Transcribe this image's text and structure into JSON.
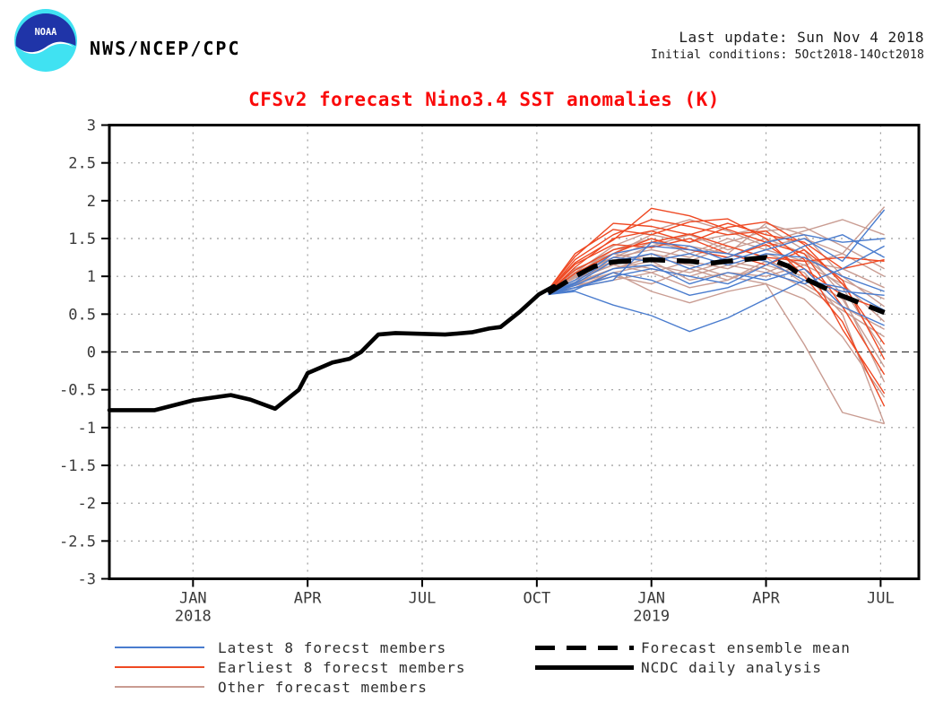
{
  "header": {
    "logo_text": "NOAA",
    "agency": "NWS/NCEP/CPC",
    "last_update": "Last update: Sun Nov 4 2018",
    "initial_conditions": "Initial conditions: 5Oct2018-14Oct2018"
  },
  "chart_data": {
    "type": "line",
    "title": "CFSv2 forecast Nino3.4 SST anomalies (K)",
    "title_color": "#fa0a0a",
    "ylabel": "",
    "xlabel": "",
    "ylim": [
      -3,
      3
    ],
    "ytick_step": 0.5,
    "ylabels": [
      "3",
      "2.5",
      "2",
      "1.5",
      "1",
      "0.5",
      "0",
      "-0.5",
      "-1",
      "-1.5",
      "-2",
      "-2.5",
      "-3"
    ],
    "x_months_rel_jan2018": [
      -2.19,
      19.0
    ],
    "xticks": [
      {
        "t": 0,
        "label": "JAN",
        "year": "2018"
      },
      {
        "t": 3,
        "label": "APR",
        "year": ""
      },
      {
        "t": 6,
        "label": "JUL",
        "year": ""
      },
      {
        "t": 9,
        "label": "OCT",
        "year": ""
      },
      {
        "t": 12,
        "label": "JAN",
        "year": "2019"
      },
      {
        "t": 15,
        "label": "APR",
        "year": ""
      },
      {
        "t": 18,
        "label": "JUL",
        "year": ""
      }
    ],
    "grid": "dotted every 0.5 K and every 3 months",
    "zero_line": true,
    "observed": {
      "name": "NCDC daily analysis",
      "color": "#000000",
      "points": [
        [
          -2.19,
          -0.77
        ],
        [
          -1.0,
          -0.77
        ],
        [
          0.0,
          -0.64
        ],
        [
          0.99,
          -0.57
        ],
        [
          1.5,
          -0.63
        ],
        [
          2.15,
          -0.75
        ],
        [
          2.77,
          -0.5
        ],
        [
          3.0,
          -0.28
        ],
        [
          3.65,
          -0.14
        ],
        [
          4.1,
          -0.09
        ],
        [
          4.4,
          0.0
        ],
        [
          4.85,
          0.23
        ],
        [
          5.3,
          0.25
        ],
        [
          6.6,
          0.23
        ],
        [
          7.3,
          0.26
        ],
        [
          7.75,
          0.31
        ],
        [
          8.05,
          0.33
        ],
        [
          8.55,
          0.53
        ],
        [
          9.05,
          0.76
        ],
        [
          9.45,
          0.87
        ]
      ]
    },
    "ensemble_mean": {
      "name": "Forecast ensemble mean",
      "color": "#000000",
      "dashed": true,
      "t": [
        9.3,
        10,
        10.5,
        11,
        12,
        13,
        13.5,
        14,
        15,
        15.6,
        16.1,
        16.9,
        17.5,
        18.1
      ],
      "values": [
        0.78,
        1.0,
        1.13,
        1.19,
        1.22,
        1.2,
        1.17,
        1.2,
        1.25,
        1.13,
        0.95,
        0.76,
        0.64,
        0.52
      ]
    },
    "members": {
      "t": [
        9.3,
        10,
        11,
        12,
        13,
        14,
        15,
        16,
        17,
        18.1
      ],
      "earliest": {
        "name": "Earliest 8 forecst members",
        "color": "#ef4923",
        "series": [
          [
            0.8,
            1.22,
            1.55,
            1.75,
            1.66,
            1.55,
            1.6,
            1.22,
            0.3,
            -0.55
          ],
          [
            0.8,
            1.18,
            1.48,
            1.9,
            1.8,
            1.62,
            1.45,
            1.3,
            0.6,
            -0.3
          ],
          [
            0.82,
            1.3,
            1.62,
            1.55,
            1.72,
            1.76,
            1.5,
            1.0,
            0.4,
            -0.72
          ],
          [
            0.78,
            1.12,
            1.5,
            1.6,
            1.45,
            1.65,
            1.72,
            1.42,
            0.9,
            0.1
          ],
          [
            0.8,
            1.08,
            1.35,
            1.45,
            1.56,
            1.4,
            1.25,
            1.2,
            1.25,
            1.2
          ],
          [
            0.78,
            1.04,
            1.3,
            1.5,
            1.35,
            1.25,
            1.42,
            1.1,
            0.75,
            0.55
          ],
          [
            0.8,
            1.16,
            1.42,
            1.38,
            1.5,
            1.3,
            1.15,
            1.35,
            0.95,
            -0.1
          ],
          [
            0.82,
            1.26,
            1.7,
            1.66,
            1.55,
            1.7,
            1.55,
            1.45,
            1.1,
            1.22
          ]
        ]
      },
      "latest": {
        "name": "Latest 8 forecst members",
        "color": "#4a7cce",
        "series": [
          [
            0.78,
            0.85,
            0.95,
            1.45,
            1.4,
            1.2,
            1.35,
            1.5,
            1.2,
            1.88
          ],
          [
            0.78,
            0.9,
            1.2,
            1.3,
            1.1,
            1.25,
            1.45,
            1.55,
            1.45,
            1.5
          ],
          [
            0.76,
            0.82,
            1.05,
            0.95,
            0.75,
            0.85,
            1.05,
            0.9,
            1.1,
            1.4
          ],
          [
            0.78,
            0.95,
            1.3,
            1.4,
            1.35,
            1.3,
            1.2,
            0.95,
            0.8,
            0.75
          ],
          [
            0.76,
            0.8,
            0.62,
            0.48,
            0.27,
            0.45,
            0.7,
            0.95,
            0.85,
            0.55
          ],
          [
            0.78,
            0.88,
            1.1,
            1.15,
            0.9,
            1.05,
            0.95,
            1.1,
            0.6,
            0.35
          ],
          [
            0.78,
            0.92,
            1.25,
            1.2,
            1.3,
            1.15,
            1.3,
            1.25,
            1.0,
            0.8
          ],
          [
            0.76,
            0.85,
            1.0,
            1.1,
            1.0,
            0.9,
            1.15,
            1.4,
            1.55,
            1.25
          ]
        ]
      },
      "other": {
        "name": "Other forecast members",
        "color": "#c99c92",
        "series": [
          [
            0.8,
            1.05,
            1.4,
            1.6,
            1.75,
            1.6,
            1.4,
            1.5,
            1.3,
            1.92
          ],
          [
            0.78,
            1.0,
            1.25,
            1.35,
            1.25,
            1.45,
            1.6,
            1.65,
            1.4,
            1.1
          ],
          [
            0.8,
            1.1,
            1.3,
            1.2,
            1.4,
            1.3,
            1.7,
            1.55,
            1.0,
            0.6
          ],
          [
            0.78,
            0.95,
            1.15,
            1.3,
            1.2,
            1.1,
            1.3,
            1.15,
            0.9,
            0.4
          ],
          [
            0.78,
            0.9,
            1.05,
            1.15,
            1.05,
            1.2,
            1.1,
            0.85,
            0.55,
            0.2
          ],
          [
            0.76,
            0.85,
            0.95,
            1.05,
            0.85,
            0.95,
            1.15,
            1.0,
            0.7,
            -0.2
          ],
          [
            0.8,
            1.0,
            1.2,
            1.1,
            1.0,
            1.15,
            1.05,
            1.25,
            0.85,
            0.0
          ],
          [
            0.78,
            0.92,
            1.1,
            1.25,
            1.15,
            1.0,
            0.9,
            0.7,
            0.2,
            -0.6
          ],
          [
            0.76,
            0.88,
            1.0,
            0.9,
            1.1,
            0.95,
            1.2,
            1.05,
            0.5,
            -0.95
          ],
          [
            0.8,
            1.02,
            1.35,
            1.5,
            1.3,
            1.5,
            1.35,
            1.2,
            1.1,
            0.85
          ],
          [
            0.78,
            0.95,
            1.2,
            1.4,
            1.55,
            1.35,
            1.5,
            1.3,
            0.95,
            0.7
          ],
          [
            0.76,
            0.85,
            1.05,
            0.8,
            0.65,
            0.8,
            0.9,
            0.1,
            -0.8,
            -0.95
          ],
          [
            0.8,
            1.05,
            1.25,
            1.45,
            1.35,
            1.25,
            1.45,
            1.6,
            1.75,
            1.55
          ],
          [
            0.78,
            0.98,
            1.15,
            1.05,
            1.2,
            1.4,
            1.25,
            0.9,
            0.6,
            0.3
          ],
          [
            0.76,
            0.9,
            1.1,
            1.2,
            0.95,
            1.05,
            1.0,
            1.15,
            1.3,
            1.0
          ],
          [
            0.8,
            1.0,
            1.3,
            1.55,
            1.45,
            1.55,
            1.65,
            1.35,
            0.75,
            -0.4
          ]
        ]
      }
    }
  },
  "legend": {
    "left": [
      {
        "label": "Latest 8 forecst members",
        "color": "#4a7cce",
        "style": "thin"
      },
      {
        "label": "Earliest 8 forecst members",
        "color": "#ef4923",
        "style": "thin"
      },
      {
        "label": "Other forecast members",
        "color": "#c99c92",
        "style": "thin"
      }
    ],
    "right": [
      {
        "label": "Forecast ensemble mean",
        "color": "#000000",
        "style": "thick-dashed"
      },
      {
        "label": "NCDC daily analysis",
        "color": "#000000",
        "style": "thick-solid"
      }
    ]
  }
}
